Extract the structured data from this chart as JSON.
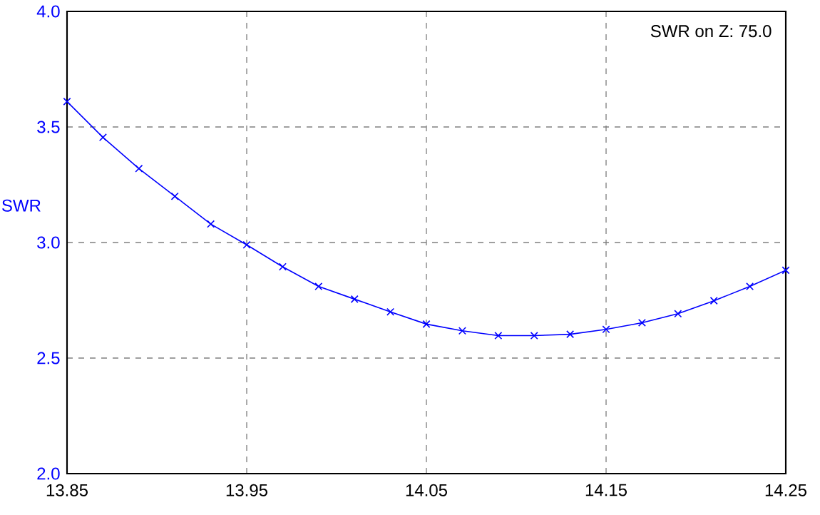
{
  "chart_data": {
    "type": "line",
    "ylabel": "SWR",
    "annotations": [
      "SWR on Z: 75.0"
    ],
    "x": [
      13.85,
      13.87,
      13.89,
      13.91,
      13.93,
      13.95,
      13.97,
      13.99,
      14.01,
      14.03,
      14.05,
      14.07,
      14.09,
      14.11,
      14.13,
      14.15,
      14.17,
      14.19,
      14.21,
      14.23,
      14.25
    ],
    "series": [
      {
        "color": "#0000ff",
        "values": [
          3.61,
          3.455,
          3.32,
          3.2,
          3.08,
          2.99,
          2.895,
          2.81,
          2.755,
          2.7,
          2.647,
          2.618,
          2.597,
          2.597,
          2.603,
          2.624,
          2.653,
          2.692,
          2.748,
          2.81,
          2.88
        ]
      }
    ],
    "xlim": [
      13.85,
      14.25
    ],
    "ylim": [
      2.0,
      4.0
    ],
    "xticks": [
      13.85,
      13.95,
      14.05,
      14.15,
      14.25
    ],
    "yticks": [
      {
        "value": 2,
        "label": "2.0"
      },
      {
        "value": 2.5,
        "label": "2.5"
      },
      {
        "value": 3,
        "label": "3.0"
      },
      {
        "value": 3.5,
        "label": "3.5"
      },
      {
        "value": 4,
        "label": "4.0"
      }
    ],
    "grid": true,
    "marker": "cross",
    "line_style": "solid"
  }
}
